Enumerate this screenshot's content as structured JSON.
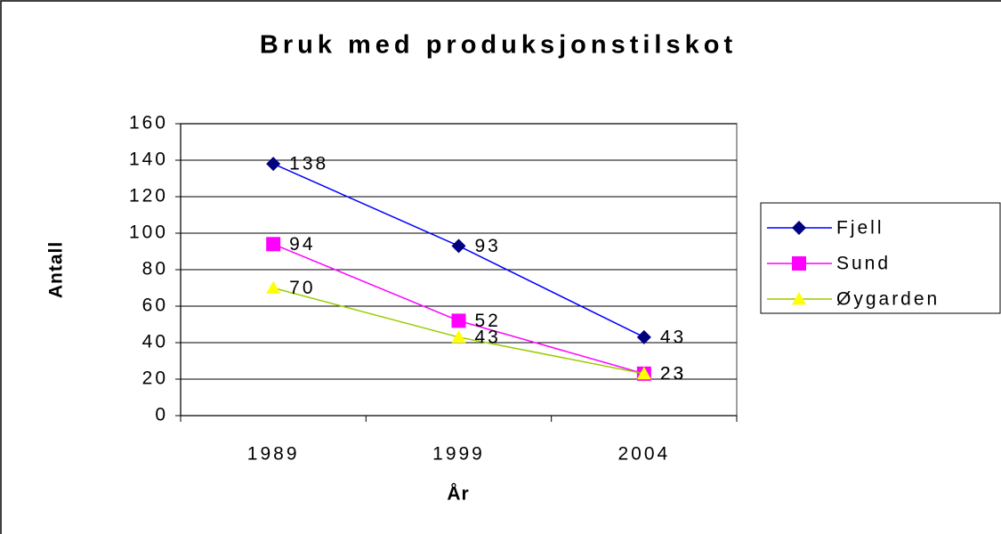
{
  "chart_data": {
    "type": "line",
    "title": "Bruk med produksjonstilskot",
    "xlabel": "År",
    "ylabel": "Antall",
    "categories": [
      "1989",
      "1999",
      "2004"
    ],
    "series": [
      {
        "name": "Fjell",
        "color": "#0000ff",
        "marker_color": "#000080",
        "marker": "diamond",
        "values": [
          138,
          93,
          43
        ]
      },
      {
        "name": "Sund",
        "color": "#ff00ff",
        "marker_color": "#ff00ff",
        "marker": "square",
        "values": [
          94,
          52,
          23
        ]
      },
      {
        "name": "Øygarden",
        "color": "#99cc00",
        "marker_color": "#ffff00",
        "marker": "triangle",
        "values": [
          70,
          43,
          23
        ]
      }
    ],
    "ylim": [
      0,
      160
    ],
    "yticks": [
      0,
      20,
      40,
      60,
      80,
      100,
      120,
      140,
      160
    ],
    "grid": true,
    "legend": "right"
  }
}
